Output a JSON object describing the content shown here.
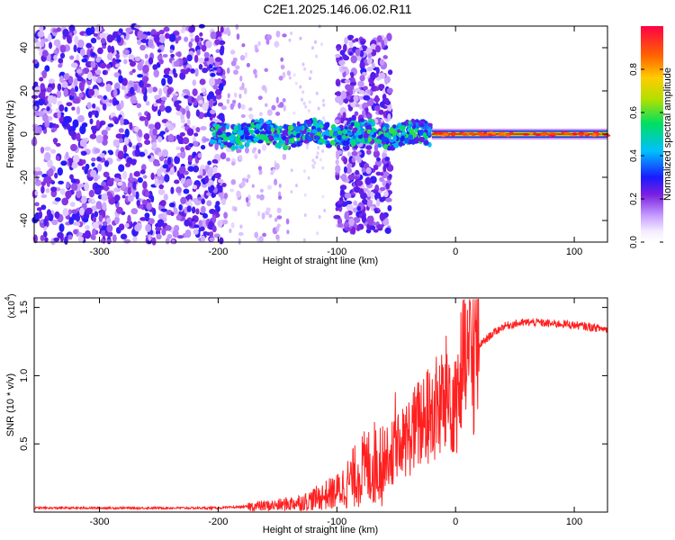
{
  "figure": {
    "title": "C2E1.2025.146.06.02.R11"
  },
  "chart_data": [
    {
      "type": "heatmap",
      "xlabel": "Height of straight line (km)",
      "ylabel": "Frequency (Hz)",
      "xlim": [
        -355,
        128
      ],
      "ylim": [
        -50,
        50
      ],
      "xticks": [
        -300,
        -200,
        -100,
        0,
        100
      ],
      "xtick_labels": [
        "-300",
        "-200",
        "-100",
        "0",
        "100"
      ],
      "yticks": [
        -40,
        -20,
        0,
        20,
        40
      ],
      "ytick_labels": [
        "-40",
        "-20",
        "0",
        "20",
        "40"
      ],
      "colorbar": {
        "label": "Normalized spectral amplitude",
        "range": [
          0,
          1
        ],
        "ticks": [
          0.0,
          0.2,
          0.4,
          0.6,
          0.8
        ],
        "tick_labels": [
          "0.0",
          "0.2",
          "0.4",
          "0.6",
          "0.8"
        ],
        "colormap": [
          "#ffffff",
          "#c8a0ff",
          "#7a1fe0",
          "#1a1aff",
          "#00bfff",
          "#00e060",
          "#b0e000",
          "#ffcc00",
          "#ff6600",
          "#ff0044"
        ]
      },
      "description_regions": [
        {
          "x_range": [
            -355,
            -195
          ],
          "content": "scattered noise, normalized amplitude 0.05-0.35, full frequency range"
        },
        {
          "x_range": [
            -195,
            -140
          ],
          "content": "sparse faint noise"
        },
        {
          "x_range": [
            -100,
            -55
          ],
          "content": "noise blob between -45 and 45 Hz"
        },
        {
          "x_range": [
            -205,
            -20
          ],
          "content": "carrier near 0 Hz, amplitude 0.3-0.6"
        },
        {
          "x_range": [
            -20,
            128
          ],
          "content": "strong carrier at 0 Hz, amplitude 0.7-1.0"
        }
      ],
      "grid": false
    },
    {
      "type": "line",
      "xlabel": "Height of straight line (km)",
      "ylabel": "SNR (10 * v/v)",
      "y_multiplier_label": "(x10",
      "y_multiplier_exp": "4",
      "y_multiplier_close": ")",
      "xlim": [
        -355,
        128
      ],
      "ylim": [
        0,
        1.57
      ],
      "xticks": [
        -300,
        -200,
        -100,
        0,
        100
      ],
      "xtick_labels": [
        "-300",
        "-200",
        "-100",
        "0",
        "100"
      ],
      "yticks": [
        0.5,
        1.0,
        1.5
      ],
      "ytick_labels": [
        "0.5",
        "1.0",
        "1.5"
      ],
      "series": [
        {
          "color": "#ff2020",
          "x": [
            -355,
            -300,
            -250,
            -200,
            -175,
            -150,
            -125,
            -100,
            -90,
            -80,
            -70,
            -60,
            -50,
            -40,
            -30,
            -20,
            -10,
            -5,
            0,
            5,
            10,
            15,
            20,
            30,
            40,
            50,
            60,
            70,
            80,
            90,
            100,
            110,
            128
          ],
          "y": [
            0.03,
            0.03,
            0.03,
            0.03,
            0.04,
            0.05,
            0.08,
            0.15,
            0.22,
            0.3,
            0.35,
            0.4,
            0.45,
            0.55,
            0.65,
            0.72,
            0.8,
            0.9,
            0.85,
            1.0,
            1.1,
            1.18,
            1.22,
            1.3,
            1.36,
            1.38,
            1.39,
            1.39,
            1.38,
            1.38,
            1.37,
            1.36,
            1.34
          ]
        }
      ],
      "grid": false
    }
  ]
}
